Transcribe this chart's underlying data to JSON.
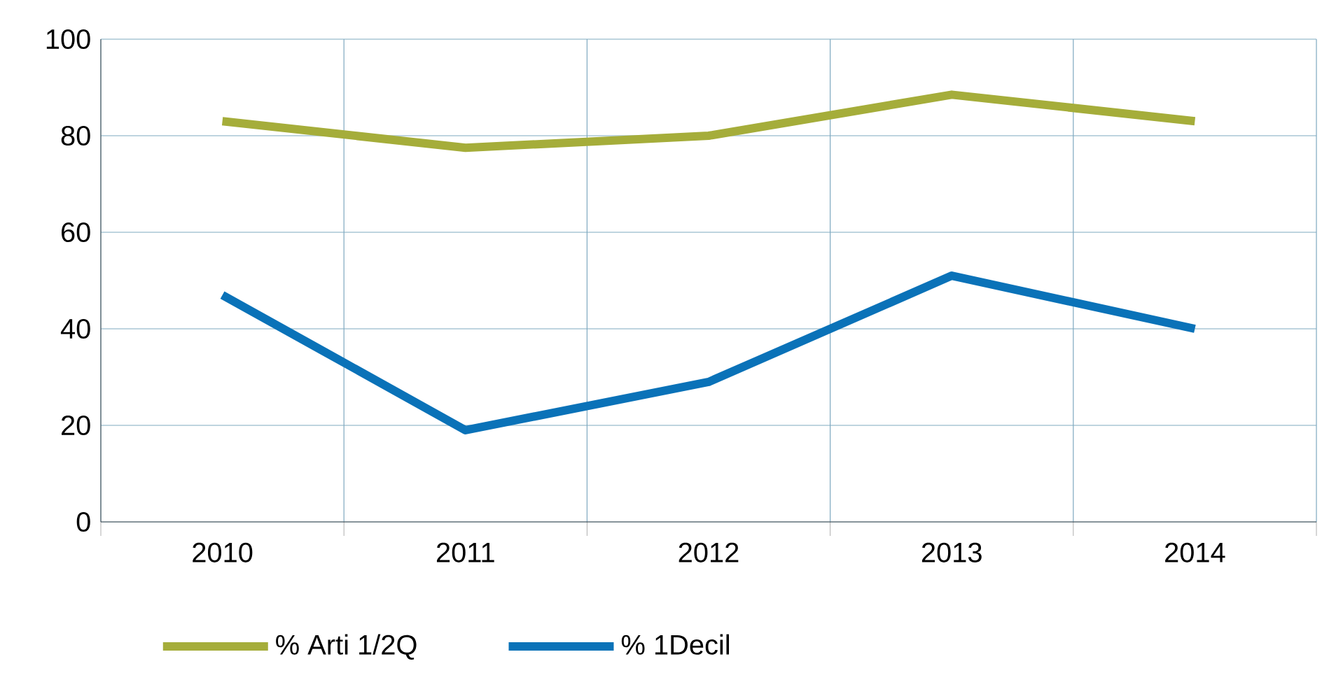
{
  "chart_data": {
    "type": "line",
    "categories": [
      "2010",
      "2011",
      "2012",
      "2013",
      "2014"
    ],
    "series": [
      {
        "name": "% Arti 1/2Q",
        "color": "#a5ad3a",
        "values": [
          83,
          77.5,
          80,
          88.5,
          83
        ]
      },
      {
        "name": "% 1Decil",
        "color": "#0a72b8",
        "values": [
          47,
          19,
          29,
          51,
          40
        ]
      }
    ],
    "ylim": [
      0,
      100
    ],
    "yticks": [
      0,
      20,
      40,
      60,
      80,
      100
    ],
    "grid": true,
    "legend": "bottom",
    "line_style": "solid"
  }
}
